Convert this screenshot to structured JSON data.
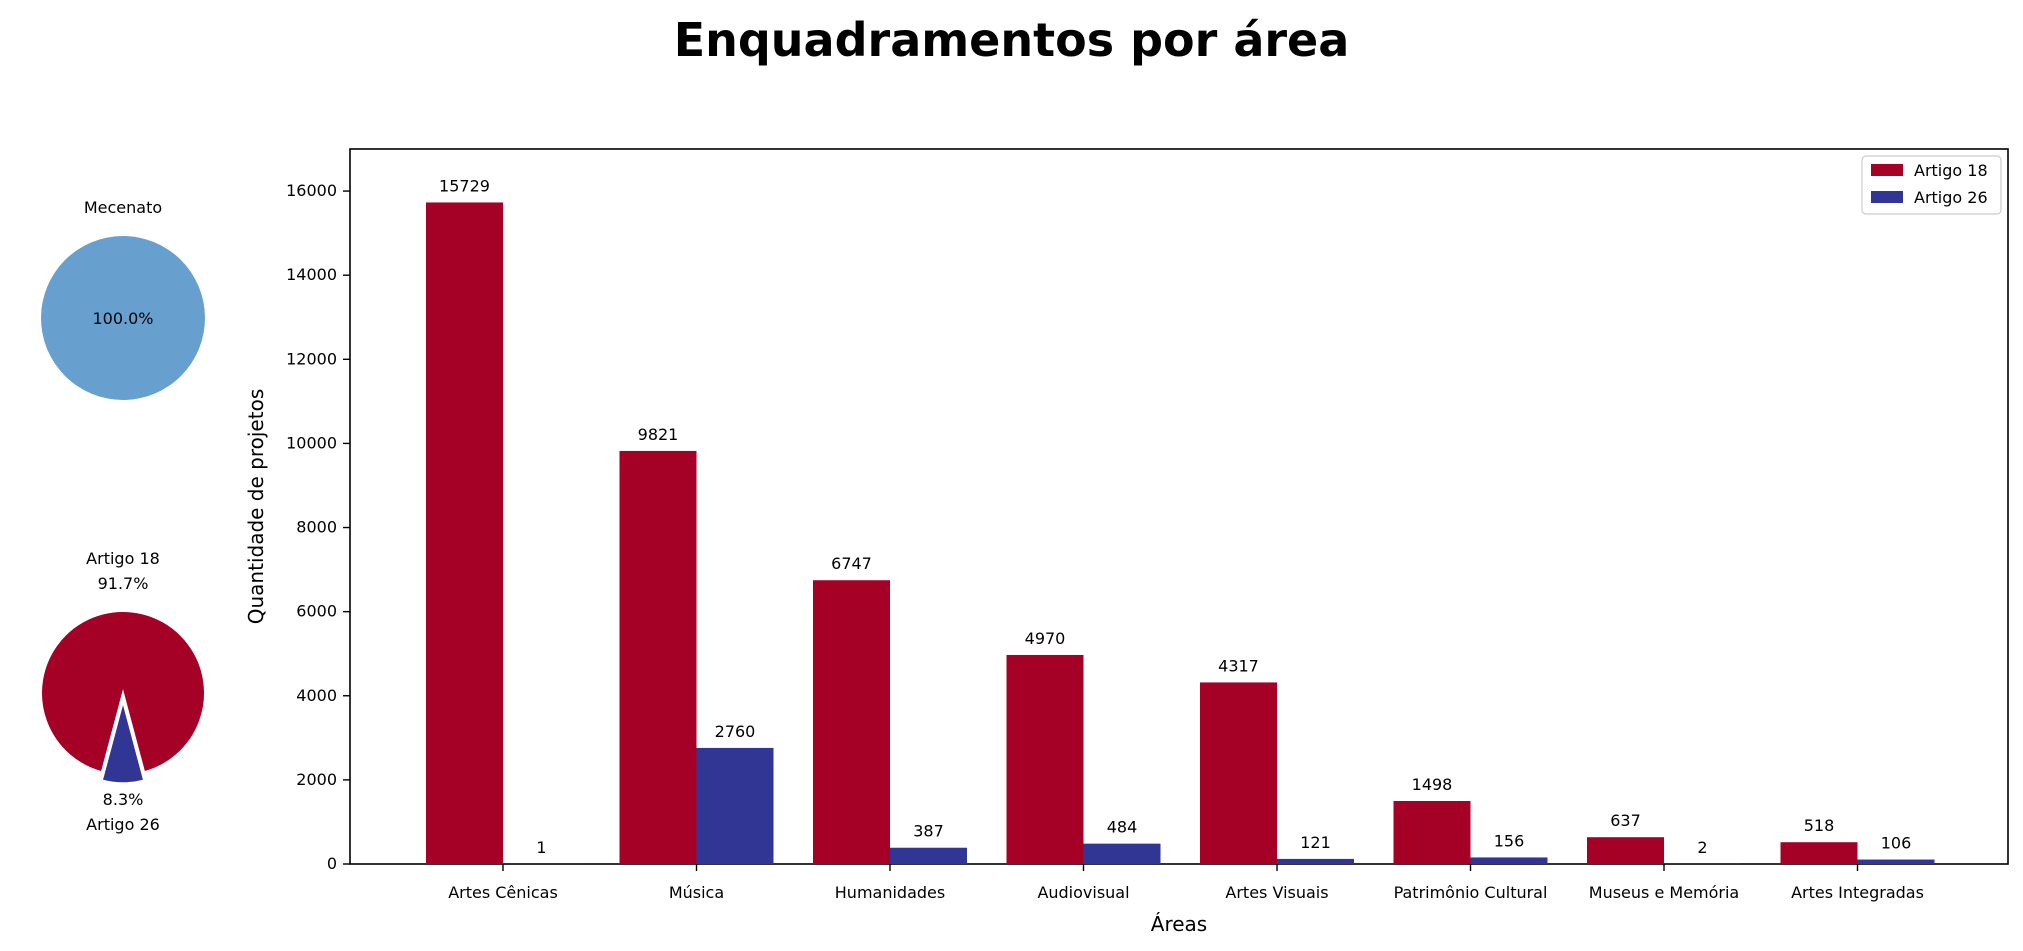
{
  "title": "Enquadramentos por área",
  "colors": {
    "artigo18": "#a50026",
    "artigo26": "#313695",
    "mecenato": "#67a0ce",
    "axis": "#000000",
    "background": "#ffffff"
  },
  "chart_data": [
    {
      "type": "pie",
      "title": "Mecenato",
      "slices": [
        {
          "label": "",
          "value": 100.0,
          "pct_label": "100.0%",
          "color": "#67a0ce"
        }
      ]
    },
    {
      "type": "pie",
      "title": "",
      "slices": [
        {
          "label": "Artigo 18",
          "value": 91.7,
          "pct_label": "91.7%",
          "color": "#a50026"
        },
        {
          "label": "Artigo 26",
          "value": 8.3,
          "pct_label": "8.3%",
          "color": "#313695",
          "exploded": true
        }
      ]
    },
    {
      "type": "bar",
      "title": "",
      "xlabel": "Áreas",
      "ylabel": "Quantidade de projetos",
      "ylim": [
        0,
        17000
      ],
      "yticks": [
        0,
        2000,
        4000,
        6000,
        8000,
        10000,
        12000,
        14000,
        16000
      ],
      "categories": [
        "Artes Cênicas",
        "Música",
        "Humanidades",
        "Audiovisual",
        "Artes Visuais",
        "Patrimônio Cultural",
        "Museus e Memória",
        "Artes Integradas"
      ],
      "series": [
        {
          "name": "Artigo 18",
          "color": "#a50026",
          "values": [
            15729,
            9821,
            6747,
            4970,
            4317,
            1498,
            637,
            518
          ]
        },
        {
          "name": "Artigo 26",
          "color": "#313695",
          "values": [
            1,
            2760,
            387,
            484,
            121,
            156,
            2,
            106
          ]
        }
      ],
      "legend": "top-right",
      "grid": false,
      "data_labels": true
    }
  ]
}
